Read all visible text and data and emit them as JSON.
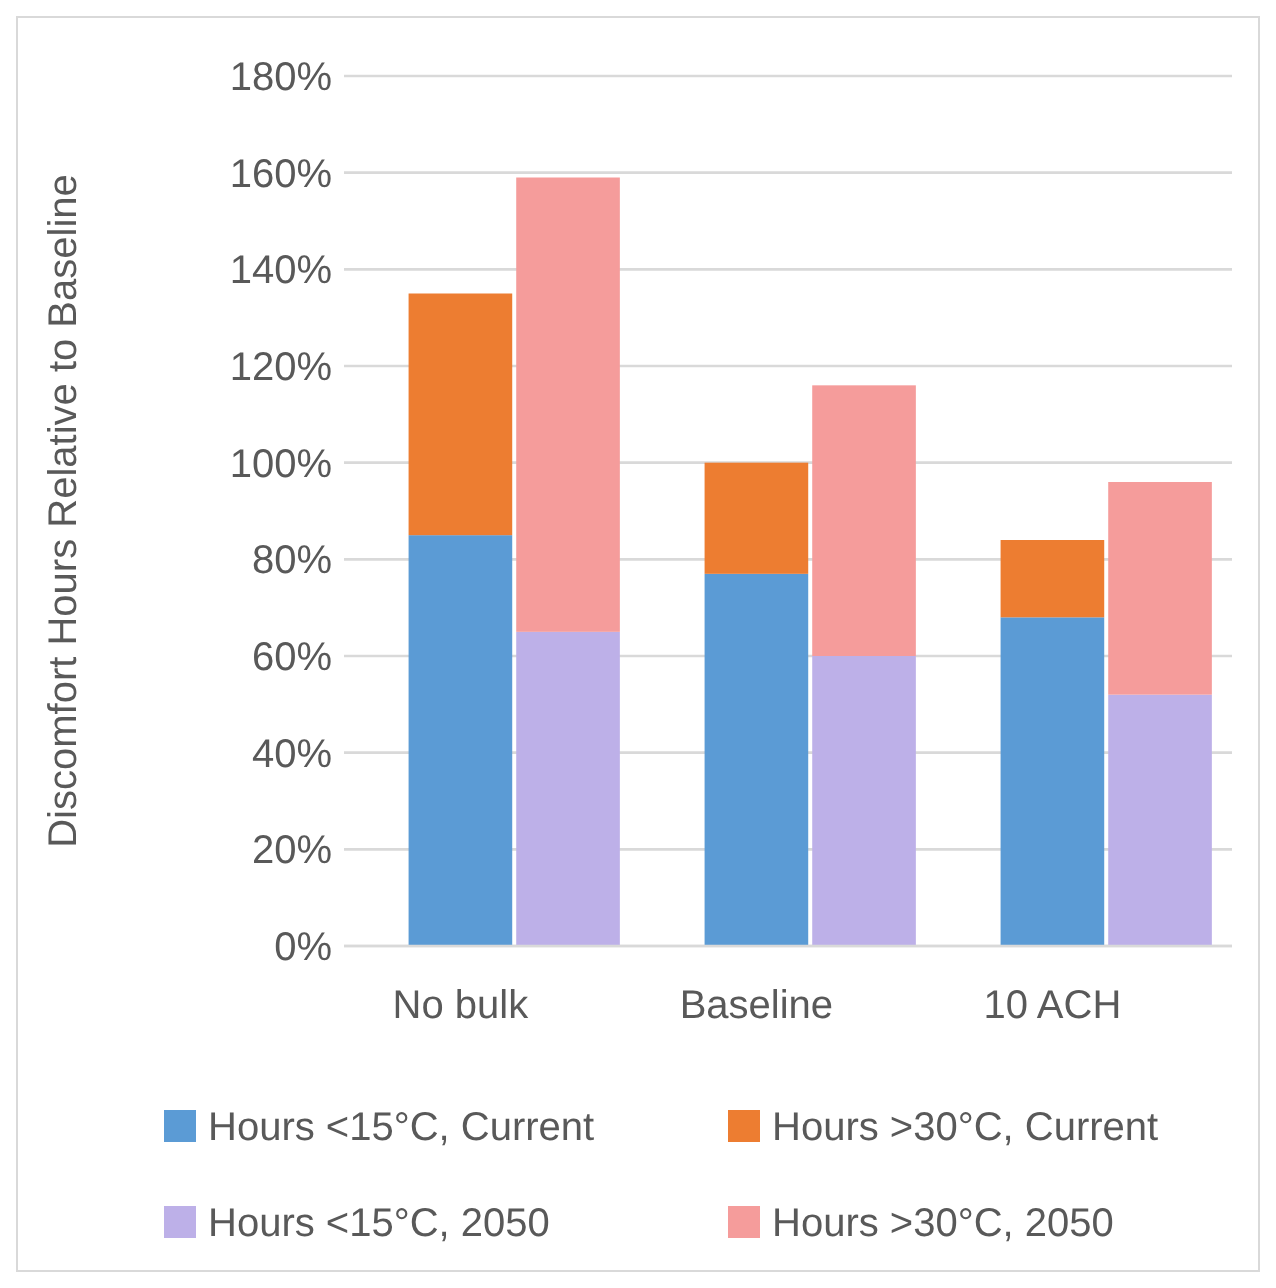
{
  "chart_data": {
    "type": "bar",
    "ylabel": "Discomfort Hours Relative to Baseline",
    "categories": [
      "No bulk",
      null,
      "Baseline",
      null,
      "10 ACH",
      null
    ],
    "stacked": true,
    "series": [
      {
        "name": "Hours <15°C, Current",
        "color": "#5b9bd5",
        "values": [
          85,
          null,
          77,
          null,
          68,
          null
        ]
      },
      {
        "name": "Hours >30°C, Current",
        "color": "#ed7d31",
        "values": [
          50,
          null,
          23,
          null,
          16,
          null
        ]
      },
      {
        "name": "Hours <15°C, 2050",
        "color": "#bdb0e8",
        "values": [
          null,
          65,
          null,
          60,
          null,
          52
        ]
      },
      {
        "name": "Hours >30°C, 2050",
        "color": "#f59c9b",
        "values": [
          null,
          94,
          null,
          56,
          null,
          44
        ]
      }
    ],
    "ylim": [
      0,
      180
    ],
    "yticks": [
      {
        "value": 0,
        "label": "0%"
      },
      {
        "value": 20,
        "label": "20%"
      },
      {
        "value": 40,
        "label": "40%"
      },
      {
        "value": 60,
        "label": "60%"
      },
      {
        "value": 80,
        "label": "80%"
      },
      {
        "value": 100,
        "label": "100%"
      },
      {
        "value": 120,
        "label": "120%"
      },
      {
        "value": 140,
        "label": "140%"
      },
      {
        "value": 160,
        "label": "160%"
      },
      {
        "value": 180,
        "label": "180%"
      }
    ],
    "grid": "y",
    "legend": "bottom"
  }
}
